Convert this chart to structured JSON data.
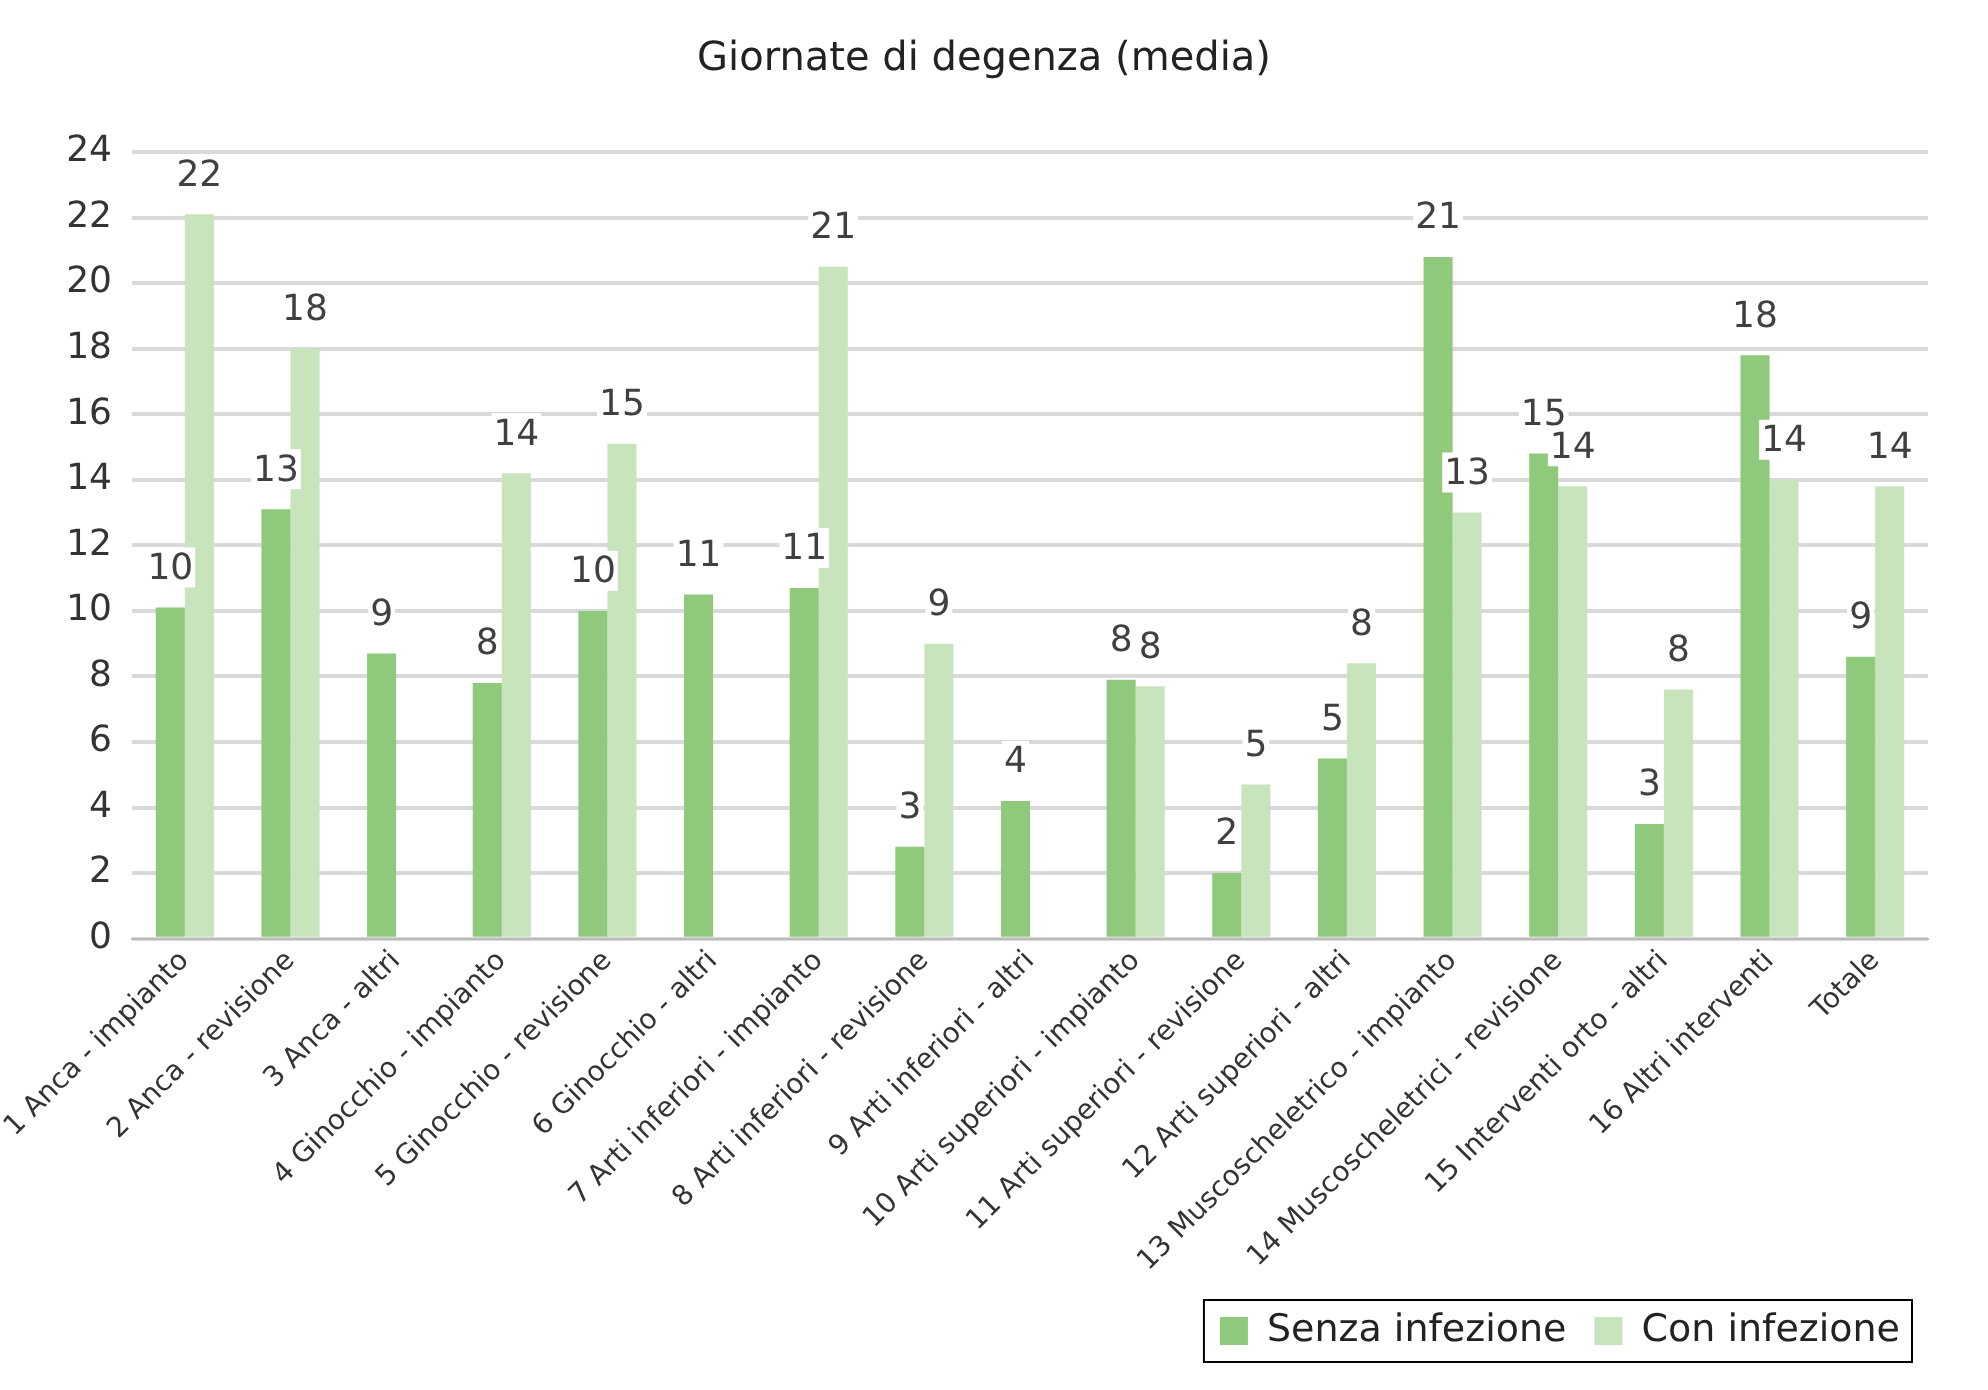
{
  "chart_data": {
    "type": "bar",
    "title": "Giornate di degenza (media)",
    "categories": [
      "1 Anca - impianto",
      "2 Anca - revisione",
      "3 Anca - altri",
      "4 Ginocchio - impianto",
      "5 Ginocchio - revisione",
      "6 Ginocchio - altri",
      "7 Arti inferiori - impianto",
      "8 Arti inferiori - revisione",
      "9 Arti inferiori - altri",
      "10 Arti superiori - impianto",
      "11 Arti superiori - revisione",
      "12 Arti superiori - altri",
      "13 Muscoscheletrico - impianto",
      "14 Muscoscheletrici - revisione",
      "15 Interventi orto - altri",
      "16 Altri interventi",
      "Totale"
    ],
    "series": [
      {
        "name": "Senza infezione",
        "color": "#8fc97b",
        "values": [
          10.1,
          13.1,
          8.7,
          7.8,
          10.0,
          10.5,
          10.7,
          2.8,
          4.2,
          7.9,
          2.0,
          5.5,
          20.8,
          14.8,
          3.5,
          17.8,
          8.6
        ],
        "value_labels": [
          "10",
          "13",
          "9",
          "8",
          "10",
          "11",
          "11",
          "3",
          "4",
          "8",
          "2",
          "5",
          "21",
          "15",
          "3",
          "18",
          "9"
        ]
      },
      {
        "name": "Con infezione",
        "color": "#c8e4bd",
        "values": [
          22.1,
          18.0,
          null,
          14.2,
          15.1,
          null,
          20.5,
          9.0,
          null,
          7.7,
          4.7,
          8.4,
          13.0,
          13.8,
          7.6,
          14.0,
          13.8
        ],
        "value_labels": [
          "22",
          "18",
          null,
          "14",
          "15",
          null,
          "21",
          "9",
          null,
          "8",
          "5",
          "8",
          "13",
          "14",
          "8",
          "14",
          "14"
        ]
      }
    ],
    "ylim": [
      0,
      24
    ],
    "yticks": [
      0,
      2,
      4,
      6,
      8,
      10,
      12,
      14,
      16,
      18,
      20,
      22,
      24
    ],
    "grid": "y",
    "legend": "bottom right"
  }
}
